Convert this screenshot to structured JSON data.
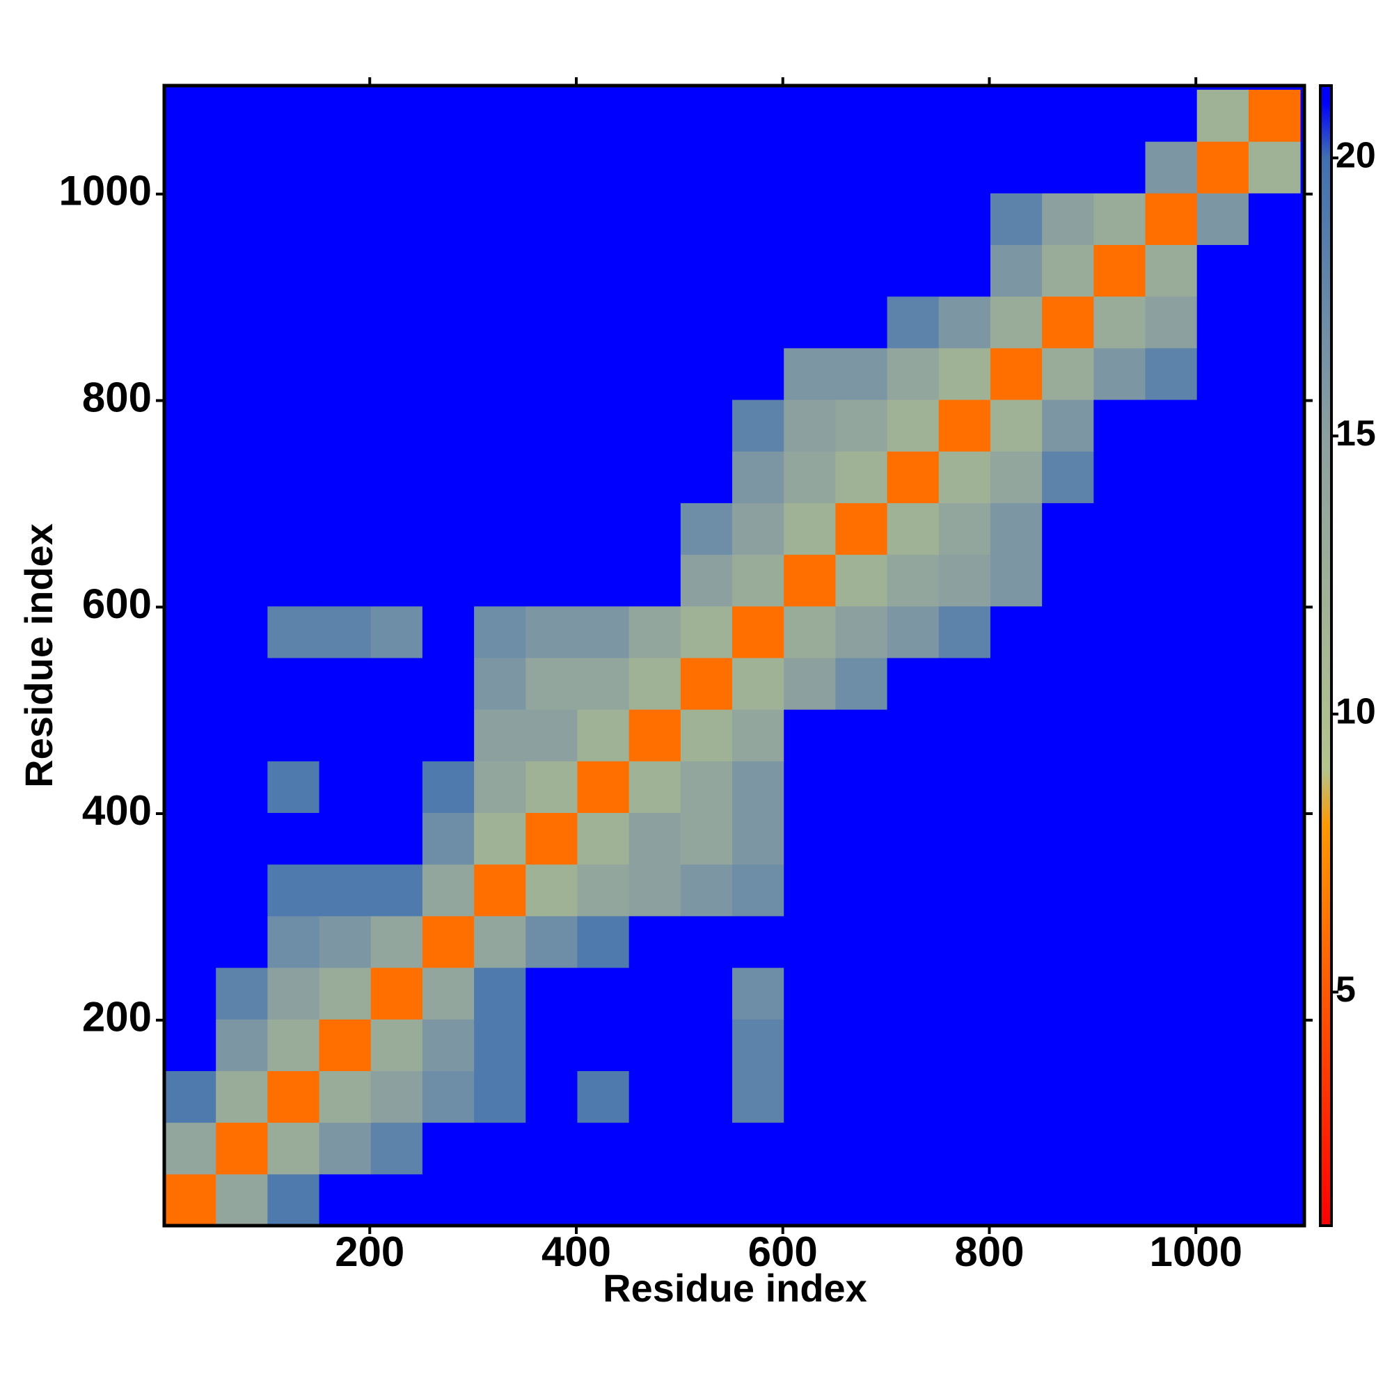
{
  "chart_data": {
    "type": "heatmap",
    "x_label": "Residue index",
    "y_label": "Residue index",
    "xlim": [
      1,
      1105
    ],
    "ylim": [
      1,
      1105
    ],
    "xticks": [
      200,
      400,
      600,
      800,
      1000
    ],
    "yticks": [
      200,
      400,
      600,
      800,
      1000
    ],
    "bins": [
      1,
      51,
      101,
      151,
      201,
      251,
      301,
      351,
      401,
      451,
      501,
      551,
      601,
      651,
      701,
      751,
      801,
      851,
      901,
      951,
      1001,
      1051,
      1101
    ],
    "clim": [
      0.8,
      21.3
    ],
    "zticks": [
      5,
      10,
      15,
      20
    ],
    "colorscale": [
      [
        0.8,
        "#ff0000"
      ],
      [
        8,
        "#ff9900"
      ],
      [
        9,
        "#b4c48c"
      ],
      [
        15,
        "#8ca0a0"
      ],
      [
        20,
        "#4070b0"
      ],
      [
        21,
        "#0000ff"
      ],
      [
        21.3,
        "#0000ff"
      ]
    ],
    "z": [
      [
        6,
        14,
        19,
        21,
        21,
        21,
        21,
        21,
        21,
        21,
        21,
        21,
        21,
        21,
        21,
        21,
        21,
        21,
        21,
        21,
        21,
        21
      ],
      [
        14,
        6,
        13,
        16,
        18,
        21,
        21,
        21,
        21,
        21,
        21,
        21,
        21,
        21,
        21,
        21,
        21,
        21,
        21,
        21,
        21,
        21
      ],
      [
        19,
        13,
        6,
        13,
        15,
        17,
        19,
        21,
        19,
        21,
        21,
        18,
        21,
        21,
        21,
        21,
        21,
        21,
        21,
        21,
        21,
        21
      ],
      [
        21,
        16,
        13,
        6,
        13,
        16,
        19,
        21,
        21,
        21,
        21,
        18,
        21,
        21,
        21,
        21,
        21,
        21,
        21,
        21,
        21,
        21
      ],
      [
        21,
        18,
        15,
        13,
        6,
        14,
        19,
        21,
        21,
        21,
        21,
        17,
        21,
        21,
        21,
        21,
        21,
        21,
        21,
        21,
        21,
        21
      ],
      [
        21,
        21,
        17,
        16,
        14,
        6,
        14,
        17,
        19,
        21,
        21,
        21,
        21,
        21,
        21,
        21,
        21,
        21,
        21,
        21,
        21,
        21
      ],
      [
        21,
        21,
        19,
        19,
        19,
        14,
        6,
        12,
        14,
        15,
        16,
        17,
        21,
        21,
        21,
        21,
        21,
        21,
        21,
        21,
        21,
        21
      ],
      [
        21,
        21,
        21,
        21,
        21,
        17,
        12,
        6,
        12,
        15,
        14,
        16,
        21,
        21,
        21,
        21,
        21,
        21,
        21,
        21,
        21,
        21
      ],
      [
        21,
        21,
        19,
        21,
        21,
        19,
        14,
        12,
        6,
        12,
        14,
        16,
        21,
        21,
        21,
        21,
        21,
        21,
        21,
        21,
        21,
        21
      ],
      [
        21,
        21,
        21,
        21,
        21,
        21,
        15,
        15,
        12,
        6,
        12,
        14,
        21,
        21,
        21,
        21,
        21,
        21,
        21,
        21,
        21,
        21
      ],
      [
        21,
        21,
        21,
        21,
        21,
        21,
        16,
        14,
        14,
        12,
        6,
        12,
        15,
        17,
        21,
        21,
        21,
        21,
        21,
        21,
        21,
        21
      ],
      [
        21,
        21,
        18,
        18,
        17,
        21,
        17,
        16,
        16,
        14,
        12,
        6,
        13,
        15,
        16,
        18,
        21,
        21,
        21,
        21,
        21,
        21
      ],
      [
        21,
        21,
        21,
        21,
        21,
        21,
        21,
        21,
        21,
        21,
        15,
        13,
        6,
        12,
        14,
        15,
        16,
        21,
        21,
        21,
        21,
        21
      ],
      [
        21,
        21,
        21,
        21,
        21,
        21,
        21,
        21,
        21,
        21,
        17,
        15,
        12,
        6,
        12,
        14,
        16,
        21,
        21,
        21,
        21,
        21
      ],
      [
        21,
        21,
        21,
        21,
        21,
        21,
        21,
        21,
        21,
        21,
        21,
        16,
        14,
        12,
        6,
        12,
        14,
        18,
        21,
        21,
        21,
        21
      ],
      [
        21,
        21,
        21,
        21,
        21,
        21,
        21,
        21,
        21,
        21,
        21,
        18,
        15,
        14,
        12,
        6,
        12,
        16,
        21,
        21,
        21,
        21
      ],
      [
        21,
        21,
        21,
        21,
        21,
        21,
        21,
        21,
        21,
        21,
        21,
        21,
        16,
        16,
        14,
        12,
        6,
        13,
        16,
        18,
        21,
        21
      ],
      [
        21,
        21,
        21,
        21,
        21,
        21,
        21,
        21,
        21,
        21,
        21,
        21,
        21,
        21,
        18,
        16,
        13,
        6,
        13,
        15,
        21,
        21
      ],
      [
        21,
        21,
        21,
        21,
        21,
        21,
        21,
        21,
        21,
        21,
        21,
        21,
        21,
        21,
        21,
        21,
        16,
        13,
        6,
        13,
        21,
        21
      ],
      [
        21,
        21,
        21,
        21,
        21,
        21,
        21,
        21,
        21,
        21,
        21,
        21,
        21,
        21,
        21,
        21,
        18,
        15,
        13,
        6,
        16,
        21
      ],
      [
        21,
        21,
        21,
        21,
        21,
        21,
        21,
        21,
        21,
        21,
        21,
        21,
        21,
        21,
        21,
        21,
        21,
        21,
        21,
        16,
        6,
        12
      ],
      [
        21,
        21,
        21,
        21,
        21,
        21,
        21,
        21,
        21,
        21,
        21,
        21,
        21,
        21,
        21,
        21,
        21,
        21,
        21,
        21,
        12,
        6
      ]
    ]
  }
}
